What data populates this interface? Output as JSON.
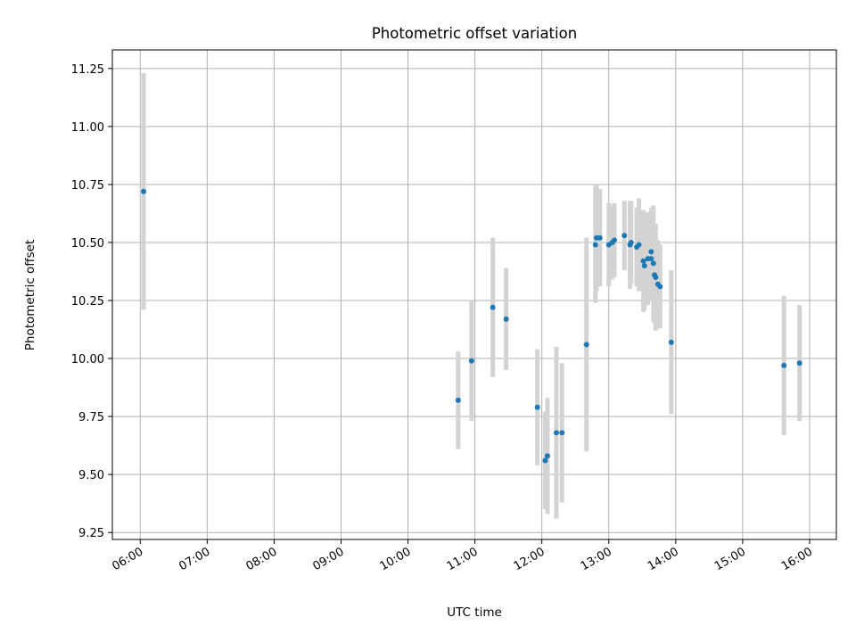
{
  "chart_data": {
    "type": "scatter",
    "title": "Photometric offset variation",
    "xlabel": "UTC time",
    "ylabel": "Photometric offset",
    "x_tick_labels": [
      "06:00",
      "07:00",
      "08:00",
      "09:00",
      "10:00",
      "11:00",
      "12:00",
      "13:00",
      "14:00",
      "15:00",
      "16:00"
    ],
    "y_tick_labels": [
      "9.25",
      "9.50",
      "9.75",
      "10.00",
      "10.25",
      "10.50",
      "10.75",
      "11.00",
      "11.25"
    ],
    "y_ticks": [
      9.25,
      9.5,
      9.75,
      10.0,
      10.25,
      10.5,
      10.75,
      11.0,
      11.25
    ],
    "xlim": [
      "05:35",
      "16:24"
    ],
    "ylim": [
      9.22,
      11.33
    ],
    "grid": true,
    "colors": {
      "point": "#1f77b4",
      "errorbar": "#d3d3d3",
      "grid": "#b0b0b0"
    },
    "points": [
      {
        "x": "06:03",
        "y": 10.72,
        "err": 0.51
      },
      {
        "x": "10:45",
        "y": 9.82,
        "err": 0.21
      },
      {
        "x": "10:57",
        "y": 9.99,
        "err": 0.26
      },
      {
        "x": "11:16",
        "y": 10.22,
        "err": 0.3
      },
      {
        "x": "11:28",
        "y": 10.17,
        "err": 0.22
      },
      {
        "x": "11:56",
        "y": 9.79,
        "err": 0.25
      },
      {
        "x": "12:03",
        "y": 9.56,
        "err": 0.21
      },
      {
        "x": "12:05",
        "y": 9.58,
        "err": 0.25
      },
      {
        "x": "12:13",
        "y": 9.68,
        "err": 0.37
      },
      {
        "x": "12:18",
        "y": 9.68,
        "err": 0.3
      },
      {
        "x": "12:40",
        "y": 10.06,
        "err": 0.46
      },
      {
        "x": "12:48",
        "y": 10.49,
        "err": 0.25
      },
      {
        "x": "12:49",
        "y": 10.52,
        "err": 0.23
      },
      {
        "x": "12:52",
        "y": 10.52,
        "err": 0.21
      },
      {
        "x": "13:00",
        "y": 10.49,
        "err": 0.18
      },
      {
        "x": "13:03",
        "y": 10.5,
        "err": 0.16
      },
      {
        "x": "13:05",
        "y": 10.51,
        "err": 0.16
      },
      {
        "x": "13:14",
        "y": 10.53,
        "err": 0.15
      },
      {
        "x": "13:19",
        "y": 10.49,
        "err": 0.19
      },
      {
        "x": "13:20",
        "y": 10.5,
        "err": 0.18
      },
      {
        "x": "13:25",
        "y": 10.48,
        "err": 0.17
      },
      {
        "x": "13:27",
        "y": 10.49,
        "err": 0.2
      },
      {
        "x": "13:31",
        "y": 10.42,
        "err": 0.22
      },
      {
        "x": "13:32",
        "y": 10.4,
        "err": 0.19
      },
      {
        "x": "13:35",
        "y": 10.43,
        "err": 0.2
      },
      {
        "x": "13:38",
        "y": 10.43,
        "err": 0.18
      },
      {
        "x": "13:38",
        "y": 10.46,
        "err": 0.19
      },
      {
        "x": "13:40",
        "y": 10.41,
        "err": 0.25
      },
      {
        "x": "13:41",
        "y": 10.36,
        "err": 0.21
      },
      {
        "x": "13:42",
        "y": 10.35,
        "err": 0.23
      },
      {
        "x": "13:44",
        "y": 10.32,
        "err": 0.19
      },
      {
        "x": "13:46",
        "y": 10.31,
        "err": 0.18
      },
      {
        "x": "13:56",
        "y": 10.07,
        "err": 0.31
      },
      {
        "x": "15:37",
        "y": 9.97,
        "err": 0.3
      },
      {
        "x": "15:51",
        "y": 9.98,
        "err": 0.25
      }
    ]
  }
}
